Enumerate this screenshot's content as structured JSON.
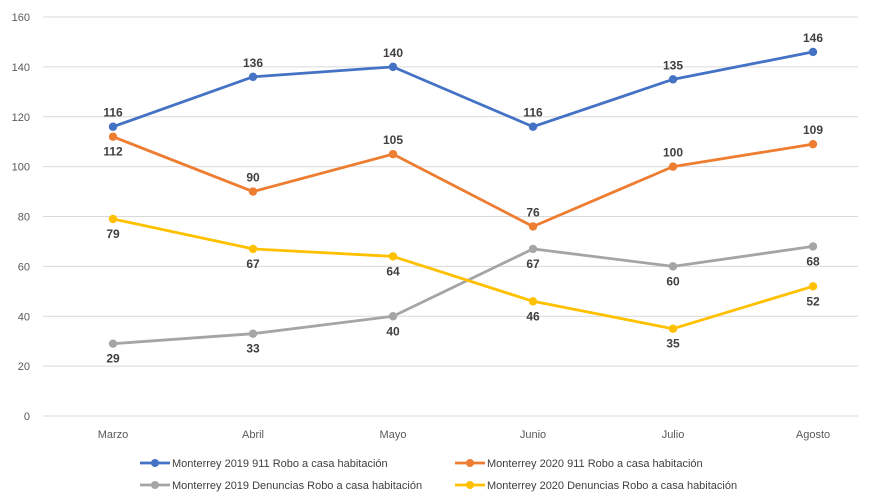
{
  "chart_data": {
    "type": "line",
    "categories": [
      "Marzo",
      "Abril",
      "Mayo",
      "Junio",
      "Julio",
      "Agosto"
    ],
    "ylim": [
      0,
      160
    ],
    "yticks": [
      0,
      20,
      40,
      60,
      80,
      100,
      120,
      140,
      160
    ],
    "grid": true,
    "legend_position": "bottom",
    "series": [
      {
        "name": "Monterrey 2019 911 Robo a casa habitación",
        "color": "#4472C4",
        "values": [
          116,
          136,
          140,
          116,
          135,
          146
        ],
        "label_pos": "above"
      },
      {
        "name": "Monterrey 2020 911 Robo a casa habitación",
        "color": "#ED7D31",
        "values": [
          112,
          90,
          105,
          76,
          100,
          109
        ],
        "label_pos": [
          "below",
          "above",
          "above",
          "above",
          "above",
          "above"
        ]
      },
      {
        "name": "Monterrey 2019 Denuncias Robo a casa habitación",
        "color": "#A5A5A5",
        "values": [
          29,
          33,
          40,
          67,
          60,
          68
        ],
        "label_pos": "below"
      },
      {
        "name": "Monterrey 2020 Denuncias Robo a casa habitación",
        "color": "#FFC000",
        "values": [
          79,
          67,
          64,
          46,
          35,
          52
        ],
        "label_pos": "below"
      }
    ]
  }
}
